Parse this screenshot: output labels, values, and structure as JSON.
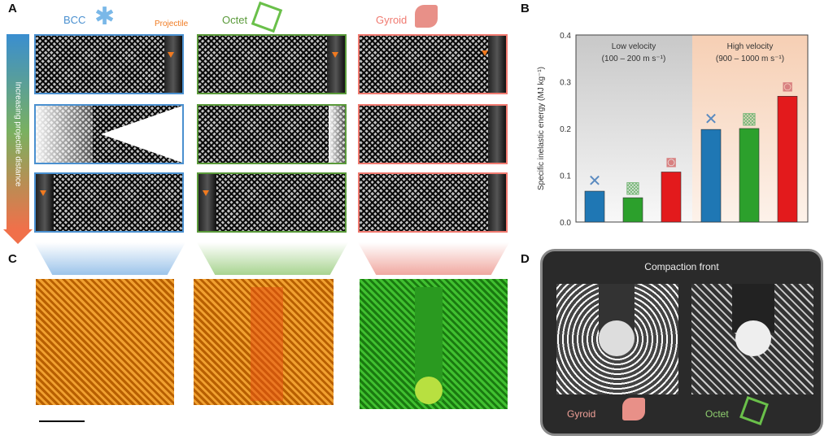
{
  "panel_labels": {
    "a": "A",
    "b": "B",
    "c": "C",
    "d": "D"
  },
  "panel_a": {
    "lattices": [
      "BCC",
      "Octet",
      "Gyroid"
    ],
    "projectile_label": "Projectile",
    "side_arrow_label": "Increasing projectile distance",
    "colors": {
      "bcc": "#4a90d0",
      "octet": "#5a9a3a",
      "gyroid": "#f07a70"
    }
  },
  "panel_d": {
    "title": "Compaction front",
    "labels": [
      "Gyroid",
      "Octet"
    ]
  },
  "chart_data": {
    "type": "bar",
    "ylabel": "Specific inelastic energy (MJ kg⁻¹)",
    "ylim": [
      0,
      0.4
    ],
    "yticks": [
      "0.0",
      "0.1",
      "0.2",
      "0.3",
      "0.4"
    ],
    "groups": [
      {
        "label": "Low velocity",
        "sublabel": "(100 – 200 m s⁻¹)",
        "values": [
          0.066,
          0.052,
          0.107
        ]
      },
      {
        "label": "High velocity",
        "sublabel": "(900 – 1000 m s⁻¹)",
        "values": [
          0.198,
          0.2,
          0.269
        ]
      }
    ],
    "series": [
      "BCC",
      "Octet",
      "Gyroid"
    ],
    "series_colors": [
      "#1f77b4",
      "#2ca02c",
      "#e31a1c"
    ]
  }
}
